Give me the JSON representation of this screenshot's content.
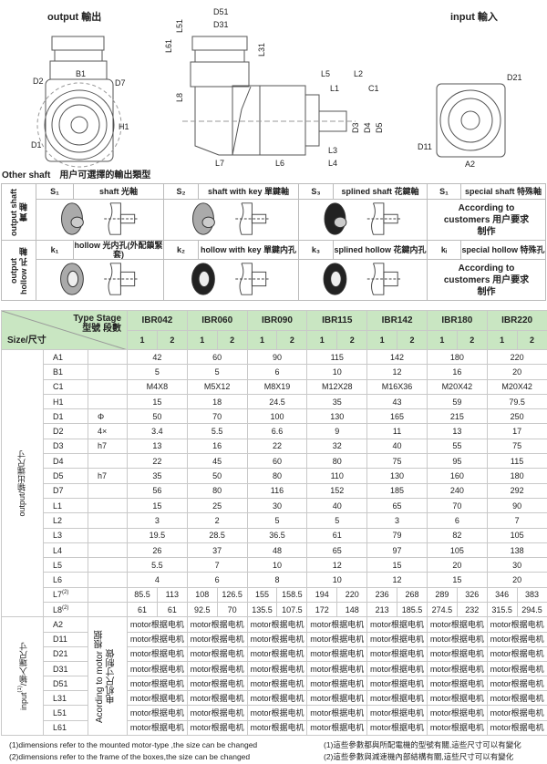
{
  "drawings": {
    "output_title": "output 輸出",
    "input_title": "input 輸入",
    "output_labels": {
      "B1": "B1",
      "D2": "D2",
      "D7": "D7",
      "H1": "H1",
      "D1": "D1"
    },
    "side_labels": {
      "D51": "D51",
      "D31": "D31",
      "L51": "L51",
      "L61": "L61",
      "L31": "L31",
      "L8": "L8",
      "L5": "L5",
      "L2": "L2",
      "L1": "L1",
      "C1": "C1",
      "D3": "D3",
      "D4": "D4",
      "D5": "D5",
      "L3": "L3",
      "L4": "L4",
      "L6": "L6",
      "L7": "L7"
    },
    "input_labels": {
      "D21": "D21",
      "D11": "D11",
      "A2": "A2"
    }
  },
  "other_shaft": {
    "title": "Other shaft　用户可選擇的輸出類型",
    "groups": [
      {
        "label": "output shaft 實 軸",
        "items": [
          {
            "code": "S₁",
            "name": "shaft 光軸",
            "icon": "smooth-shaft"
          },
          {
            "code": "S₂",
            "name": "shaft with key 單鍵軸",
            "icon": "keyed-shaft"
          },
          {
            "code": "S₃",
            "name": "splined shaft 花鍵軸",
            "icon": "splined-shaft"
          },
          {
            "code": "S₁",
            "name": "special shaft 特殊軸",
            "custom": "According to customers 用户要求制作"
          }
        ]
      },
      {
        "label": "output hollow 孔 軸",
        "items": [
          {
            "code": "k₁",
            "name": "hollow 光内孔(外配鎖緊套)",
            "icon": "smooth-hollow"
          },
          {
            "code": "k₂",
            "name": "hollow with key 單鍵内孔",
            "icon": "keyed-hollow"
          },
          {
            "code": "k₃",
            "name": "splined hollow 花鍵内孔",
            "icon": "splined-hollow"
          },
          {
            "code": "kᵢ",
            "name": "special hollow 特殊孔",
            "custom": "According to customers 用户要求制作"
          }
        ]
      }
    ]
  },
  "table": {
    "header_type": "Type Stage",
    "header_type_cn": "型號 段數",
    "header_size": "Size/尺寸",
    "models": [
      "IBR042",
      "IBR060",
      "IBR090",
      "IBR115",
      "IBR142",
      "IBR180",
      "IBR220"
    ],
    "stages": [
      "1",
      "2"
    ],
    "output_group": "output/输出端尺寸",
    "output_rows": [
      {
        "p": "A1",
        "n": "",
        "v": [
          "42",
          "60",
          "90",
          "115",
          "142",
          "180",
          "220"
        ]
      },
      {
        "p": "B1",
        "n": "",
        "v": [
          "5",
          "5",
          "6",
          "10",
          "12",
          "16",
          "20"
        ]
      },
      {
        "p": "C1",
        "n": "",
        "v": [
          "M4X8",
          "M5X12",
          "M8X19",
          "M12X28",
          "M16X36",
          "M20X42",
          "M20X42"
        ]
      },
      {
        "p": "H1",
        "n": "",
        "v": [
          "15",
          "18",
          "24.5",
          "35",
          "43",
          "59",
          "79.5"
        ]
      },
      {
        "p": "D1",
        "n": "Φ",
        "v": [
          "50",
          "70",
          "100",
          "130",
          "165",
          "215",
          "250"
        ]
      },
      {
        "p": "D2",
        "n": "4×",
        "v": [
          "3.4",
          "5.5",
          "6.6",
          "9",
          "11",
          "13",
          "17"
        ]
      },
      {
        "p": "D3",
        "n": "h7",
        "v": [
          "13",
          "16",
          "22",
          "32",
          "40",
          "55",
          "75"
        ]
      },
      {
        "p": "D4",
        "n": "",
        "v": [
          "22",
          "45",
          "60",
          "80",
          "75",
          "95",
          "115"
        ]
      },
      {
        "p": "D5",
        "n": "h7",
        "v": [
          "35",
          "50",
          "80",
          "110",
          "130",
          "160",
          "180"
        ]
      },
      {
        "p": "D7",
        "n": "",
        "v": [
          "56",
          "80",
          "116",
          "152",
          "185",
          "240",
          "292"
        ]
      },
      {
        "p": "L1",
        "n": "",
        "v": [
          "15",
          "25",
          "30",
          "40",
          "65",
          "70",
          "90"
        ]
      },
      {
        "p": "L2",
        "n": "",
        "v": [
          "3",
          "2",
          "5",
          "5",
          "3",
          "6",
          "7"
        ]
      },
      {
        "p": "L3",
        "n": "",
        "v": [
          "19.5",
          "28.5",
          "36.5",
          "61",
          "79",
          "82",
          "105"
        ]
      },
      {
        "p": "L4",
        "n": "",
        "v": [
          "26",
          "37",
          "48",
          "65",
          "97",
          "105",
          "138"
        ]
      },
      {
        "p": "L5",
        "n": "",
        "v": [
          "5.5",
          "7",
          "10",
          "12",
          "15",
          "20",
          "30"
        ]
      },
      {
        "p": "L6",
        "n": "",
        "v": [
          "4",
          "6",
          "8",
          "10",
          "12",
          "15",
          "20"
        ]
      },
      {
        "p": "L7",
        "sup": "(2)",
        "n": "",
        "v": [
          "85.5",
          "113",
          "108",
          "126.5",
          "155",
          "158.5",
          "194",
          "220",
          "236",
          "268",
          "289",
          "326",
          "346",
          "383"
        ]
      },
      {
        "p": "L8",
        "sup": "(2)",
        "n": "",
        "v": [
          "61",
          "61",
          "92.5",
          "70",
          "135.5",
          "107.5",
          "172",
          "148",
          "213",
          "185.5",
          "274.5",
          "232",
          "315.5",
          "294.5"
        ]
      }
    ],
    "input_group": "input",
    "input_group_sup": "(1)",
    "input_group_cn": "/输入端尺寸",
    "input_note": "Acording to motor 根据电机尺寸制做",
    "input_value": "motor根据电机",
    "input_rows": [
      "A2",
      "D11",
      "D21",
      "D31",
      "D51",
      "L31",
      "L51",
      "L61"
    ]
  },
  "notes": {
    "en": [
      "(1)dimensions refer to the mounted motor-type ,the size can be changed",
      "(2)dimensions refer to the frame of the boxes,the size can be changed"
    ],
    "cn": [
      "(1)這些參數都與所配電機的型號有關,這些尺寸可以有變化",
      "(2)這些參數與減速機內部結構有關,這些尺寸可以有變化"
    ]
  },
  "colors": {
    "header_green": "#c9e6c2",
    "border": "#c9c9c9"
  }
}
